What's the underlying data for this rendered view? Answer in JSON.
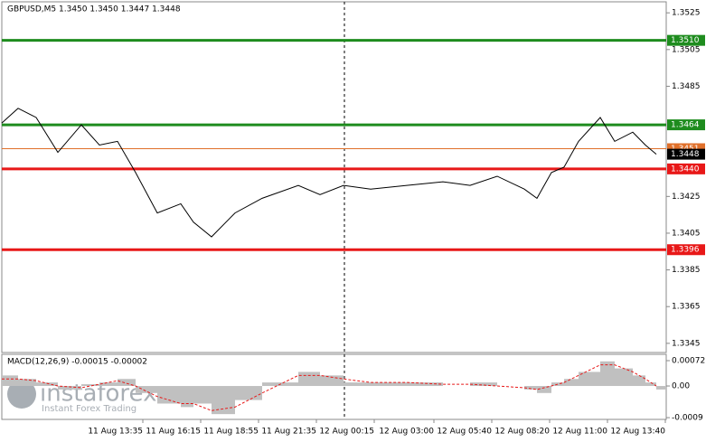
{
  "chart_data": [
    {
      "type": "line",
      "title": "GBPUSD,M5  1.3450 1.3450 1.3447 1.3448",
      "color": "#000000",
      "x": [
        0,
        9,
        19,
        31,
        44,
        54,
        64,
        74,
        86,
        99,
        106,
        116,
        129,
        144,
        164,
        176,
        189,
        204,
        224,
        244,
        259,
        274,
        289,
        296,
        304,
        311,
        319,
        331,
        339,
        349,
        356,
        362
      ],
      "values": [
        1.3465,
        1.3473,
        1.3468,
        1.3449,
        1.3464,
        1.3453,
        1.3455,
        1.3438,
        1.3416,
        1.3421,
        1.3411,
        1.3403,
        1.3416,
        1.3424,
        1.3431,
        1.3426,
        1.3431,
        1.3429,
        1.3431,
        1.3433,
        1.3431,
        1.3436,
        1.3429,
        1.3424,
        1.3438,
        1.3441,
        1.3455,
        1.3468,
        1.3455,
        1.346,
        1.3453,
        1.3448
      ],
      "xlim": [
        0,
        367.5
      ],
      "ylim": [
        1.334,
        1.3531
      ],
      "yticks": [
        1.3525,
        1.3505,
        1.3485,
        1.3425,
        1.3405,
        1.3385,
        1.3365,
        1.3345
      ],
      "xticks": [
        {
          "value": 78,
          "label": "11 Aug 13:35"
        },
        {
          "value": 110,
          "label": "11 Aug 16:15"
        },
        {
          "value": 142,
          "label": "11 Aug 18:55"
        },
        {
          "value": 174,
          "label": "11 Aug 21:35"
        },
        {
          "value": 206,
          "label": "12 Aug 00:15"
        },
        {
          "value": 239,
          "label": "12 Aug 03:00"
        },
        {
          "value": 271,
          "label": "12 Aug 05:40"
        },
        {
          "value": 303,
          "label": "12 Aug 08:20"
        },
        {
          "value": 335,
          "label": "12 Aug 11:00"
        },
        {
          "value": 367,
          "label": "12 Aug 13:40"
        }
      ],
      "levels": [
        {
          "value": 1.351,
          "label": "1.3510",
          "color": "#1e8c1e"
        },
        {
          "value": 1.3464,
          "color": "#1e8c1e"
        },
        {
          "value": 1.3451,
          "color": "#e0702a"
        },
        {
          "value": 1.3448,
          "color": "#000000"
        },
        {
          "value": 1.344,
          "label": "1.3440",
          "color": "#e81818"
        },
        {
          "value": 1.3396,
          "color": "#e81818"
        }
      ]
    },
    {
      "type": "macd",
      "title": "MACD(12,26,9) -0.00015 -0.00002",
      "color": "#c0c0c0",
      "signal_color": "#e81818",
      "x": [
        0,
        9,
        19,
        31,
        44,
        54,
        64,
        74,
        86,
        99,
        106,
        116,
        129,
        144,
        164,
        176,
        189,
        204,
        224,
        244,
        259,
        274,
        289,
        296,
        304,
        311,
        319,
        331,
        339,
        349,
        356,
        362
      ],
      "values": [
        0.0003,
        0.0002,
        0.0001,
        -0.0001,
        5e-05,
        0.0001,
        0.0002,
        -0.0002,
        -0.0005,
        -0.0006,
        -0.0005,
        -0.0008,
        -0.0004,
        0.0001,
        0.0004,
        0.0003,
        0.0001,
        0.0001,
        0.0001,
        0,
        0.0001,
        0,
        -0.0001,
        -0.0002,
        0.0001,
        0.0002,
        0.0004,
        0.0007,
        0.0005,
        0.0003,
        0.0001,
        -0.0001
      ],
      "signal": [
        0.0002,
        0.0002,
        0.00015,
        0,
        -5e-05,
        5e-05,
        0.00015,
        0,
        -0.0003,
        -0.0005,
        -0.0005,
        -0.0007,
        -0.0006,
        -0.0002,
        0.0003,
        0.0003,
        0.0002,
        0.0001,
        0.0001,
        5e-05,
        5e-05,
        0,
        -5e-05,
        -0.0001,
        0,
        0.0001,
        0.0003,
        0.0006,
        0.0006,
        0.0004,
        0.0002,
        0
      ],
      "xlim": [
        0,
        367.5
      ],
      "ylim": [
        -0.00095,
        0.0009
      ],
      "yticks": [
        0.00072,
        {
          "value": 0,
          "label": "0.00"
        },
        -0.0009
      ]
    }
  ],
  "watermark": {
    "title": "instaforex",
    "subtitle": "Instant Forex Trading"
  }
}
